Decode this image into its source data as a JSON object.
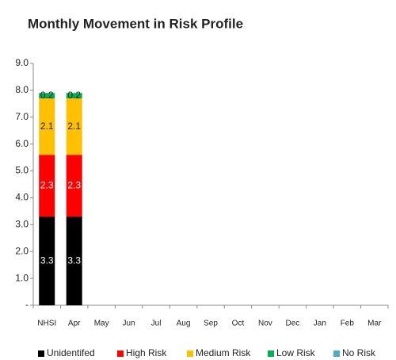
{
  "chart_data": {
    "type": "stacked-bar",
    "title": "Monthly Movement in Risk Profile",
    "categories": [
      "NHSI",
      "Apr",
      "May",
      "Jun",
      "Jul",
      "Aug",
      "Sep",
      "Oct",
      "Nov",
      "Dec",
      "Jan",
      "Feb",
      "Mar"
    ],
    "series": [
      {
        "name": "Unidentifed",
        "color": "#000000",
        "label_color": "#ffffff",
        "values": [
          3.3,
          3.3,
          null,
          null,
          null,
          null,
          null,
          null,
          null,
          null,
          null,
          null,
          null
        ]
      },
      {
        "name": "High Risk",
        "color": "#ff0000",
        "label_color": "#ffffff",
        "values": [
          2.3,
          2.3,
          null,
          null,
          null,
          null,
          null,
          null,
          null,
          null,
          null,
          null,
          null
        ]
      },
      {
        "name": "Medium Risk",
        "color": "#ffc000",
        "label_color": "#222222",
        "values": [
          2.1,
          2.1,
          null,
          null,
          null,
          null,
          null,
          null,
          null,
          null,
          null,
          null,
          null
        ]
      },
      {
        "name": "Low Risk",
        "color": "#00b050",
        "label_color": "#222222",
        "values": [
          0.2,
          0.2,
          null,
          null,
          null,
          null,
          null,
          null,
          null,
          null,
          null,
          null,
          null
        ]
      },
      {
        "name": "No Risk",
        "color": "#4bacc6",
        "label_color": "#222222",
        "values": [
          null,
          null,
          null,
          null,
          null,
          null,
          null,
          null,
          null,
          null,
          null,
          null,
          null
        ]
      }
    ],
    "ylim": [
      0,
      9
    ],
    "yticks": [
      {
        "value": 0,
        "label": "-"
      },
      {
        "value": 1,
        "label": "1.0"
      },
      {
        "value": 2,
        "label": "2.0"
      },
      {
        "value": 3,
        "label": "3.0"
      },
      {
        "value": 4,
        "label": "4.0"
      },
      {
        "value": 5,
        "label": "5.0"
      },
      {
        "value": 6,
        "label": "6.0"
      },
      {
        "value": 7,
        "label": "7.0"
      },
      {
        "value": 8,
        "label": "8.0"
      },
      {
        "value": 9,
        "label": "9.0"
      }
    ],
    "legend": "bottom",
    "grid": false
  }
}
